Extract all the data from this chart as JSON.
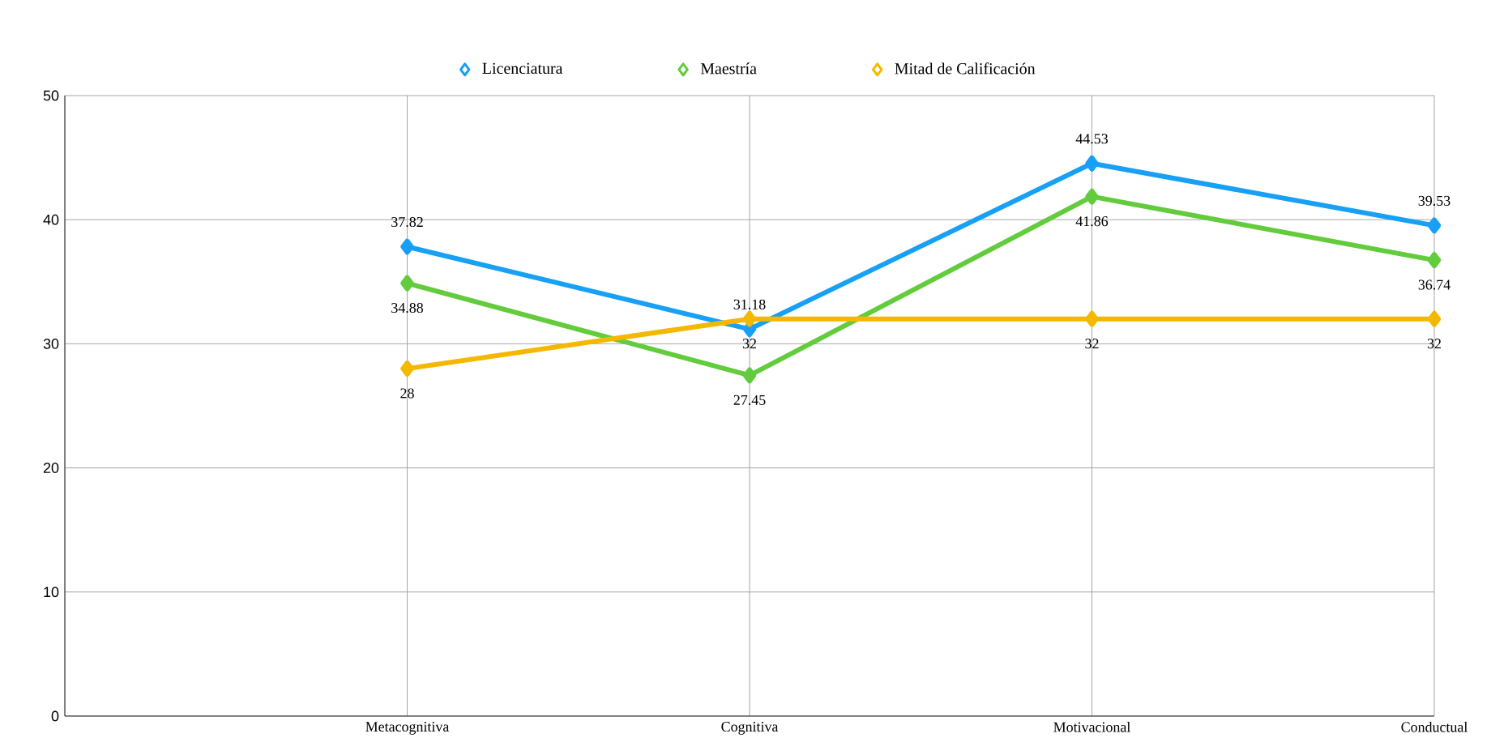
{
  "chart_data": {
    "type": "line",
    "categories": [
      null,
      "Metacognitiva",
      "Cognitiva",
      "Motivacional",
      "Conductual"
    ],
    "series": [
      {
        "name": "Licenciatura",
        "color": "#17a0f5",
        "values": [
          null,
          37.82,
          31.18,
          44.53,
          39.53
        ]
      },
      {
        "name": "Maestría",
        "color": "#62cc3c",
        "values": [
          null,
          34.88,
          27.45,
          41.86,
          36.74
        ]
      },
      {
        "name": "Mitad de Calificación",
        "color": "#f5b800",
        "values": [
          null,
          28,
          32,
          32,
          32
        ]
      }
    ],
    "ylim": [
      0,
      50
    ],
    "yticks": [
      0,
      10,
      20,
      30,
      40,
      50
    ],
    "grid": true,
    "legend": "top",
    "marker": "diamond",
    "line_style": "solid",
    "data_labels": true
  }
}
